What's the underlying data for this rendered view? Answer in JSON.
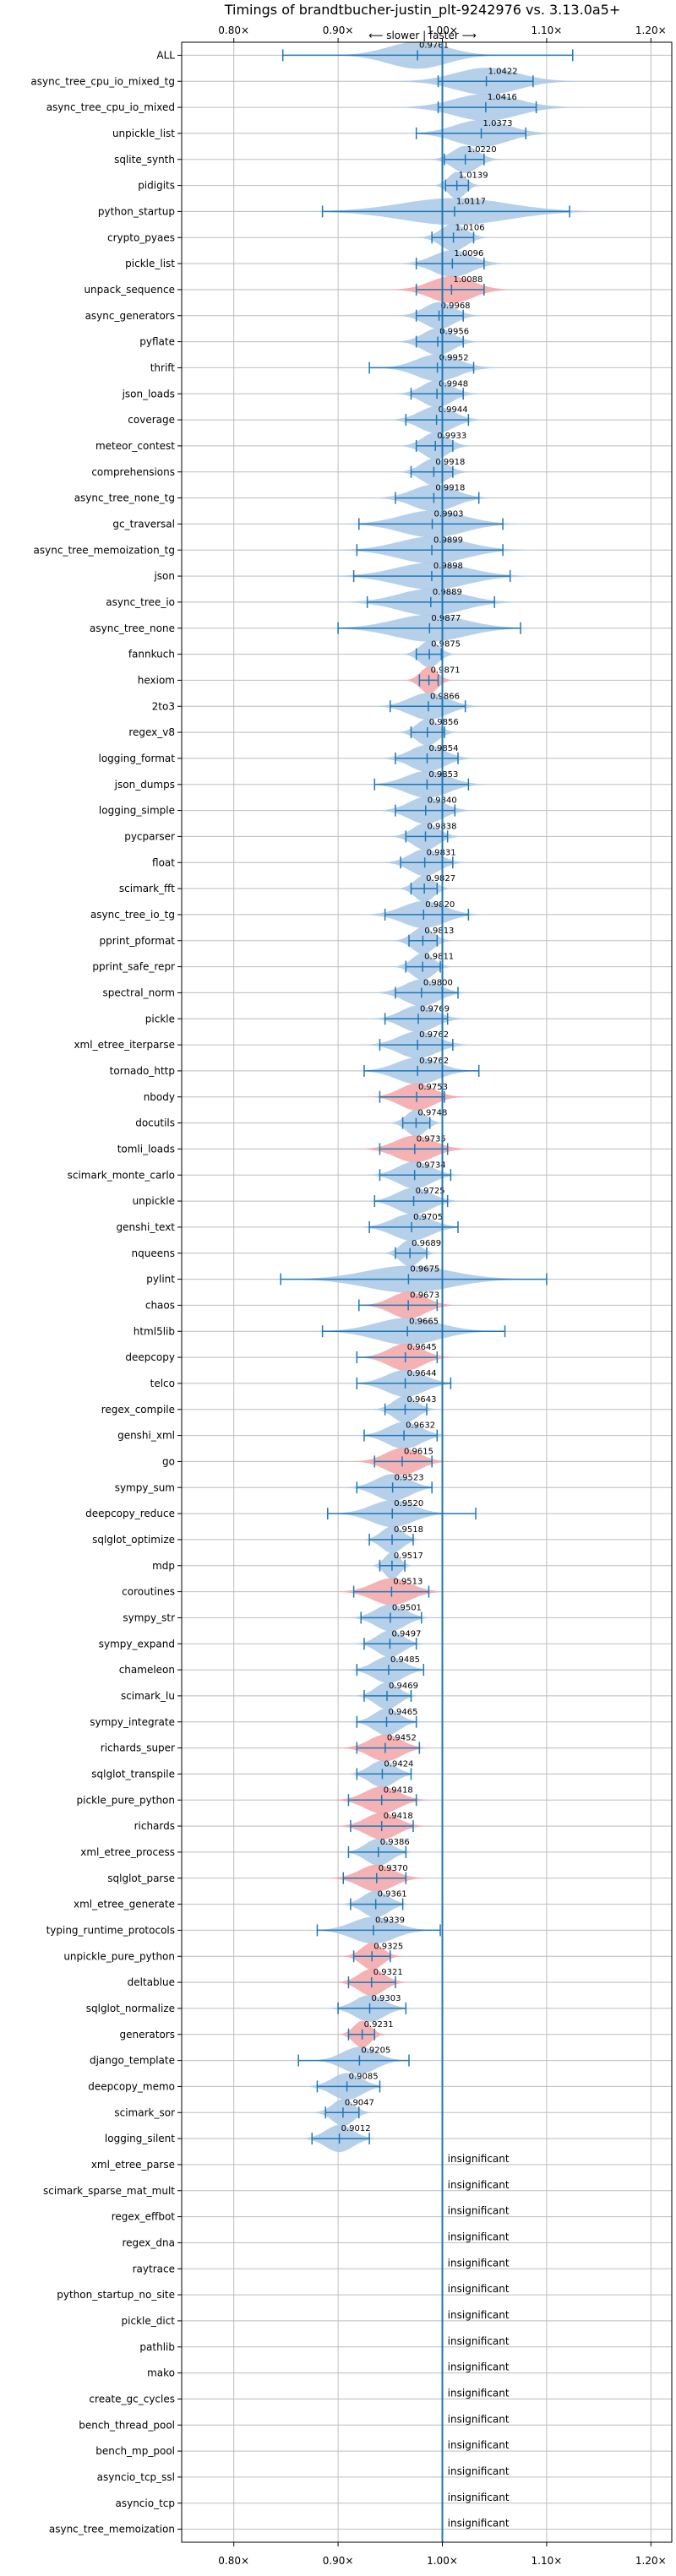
{
  "chart_data": {
    "type": "violin",
    "title": "Timings of brandtbucher-justin_plt-9242976 vs. 3.13.0a5+",
    "annotation": "⟵ slower | faster ⟶",
    "xlim": [
      0.75,
      1.22
    ],
    "xticks": [
      0.8,
      0.9,
      1.0,
      1.1,
      1.2
    ],
    "xtick_labels": [
      "0.80×",
      "0.90×",
      "1.00×",
      "1.10×",
      "1.20×"
    ],
    "reference_line": 1.0,
    "grid": true,
    "colors": {
      "faster": "#aac8e6",
      "slower": "#f2a5a8",
      "line": "#1f77b4"
    },
    "insignificant_label": "insignificant",
    "benchmarks": [
      {
        "name": "ALL",
        "mean": 0.9761,
        "min": 0.847,
        "max": 1.125,
        "color": "blue",
        "spread": 0.028
      },
      {
        "name": "async_tree_cpu_io_mixed_tg",
        "mean": 1.0422,
        "min": 0.996,
        "max": 1.087,
        "color": "blue",
        "spread": 0.03
      },
      {
        "name": "async_tree_cpu_io_mixed",
        "mean": 1.0416,
        "min": 0.996,
        "max": 1.09,
        "color": "blue",
        "spread": 0.03
      },
      {
        "name": "unpickle_list",
        "mean": 1.0373,
        "min": 0.975,
        "max": 1.08,
        "color": "blue",
        "spread": 0.025
      },
      {
        "name": "sqlite_synth",
        "mean": 1.022,
        "min": 1.002,
        "max": 1.04,
        "color": "blue",
        "spread": 0.012
      },
      {
        "name": "pidigits",
        "mean": 1.0139,
        "min": 1.003,
        "max": 1.025,
        "color": "blue",
        "spread": 0.008
      },
      {
        "name": "python_startup",
        "mean": 1.0117,
        "min": 0.885,
        "max": 1.122,
        "color": "blue",
        "spread": 0.05
      },
      {
        "name": "crypto_pyaes",
        "mean": 1.0106,
        "min": 0.99,
        "max": 1.03,
        "color": "blue",
        "spread": 0.012
      },
      {
        "name": "pickle_list",
        "mean": 1.0096,
        "min": 0.975,
        "max": 1.04,
        "color": "blue",
        "spread": 0.018
      },
      {
        "name": "unpack_sequence",
        "mean": 1.0088,
        "min": 0.975,
        "max": 1.04,
        "color": "red",
        "spread": 0.02
      },
      {
        "name": "async_generators",
        "mean": 0.9968,
        "min": 0.975,
        "max": 1.02,
        "color": "blue",
        "spread": 0.014
      },
      {
        "name": "pyflate",
        "mean": 0.9956,
        "min": 0.975,
        "max": 1.02,
        "color": "blue",
        "spread": 0.014
      },
      {
        "name": "thrift",
        "mean": 0.9952,
        "min": 0.93,
        "max": 1.03,
        "color": "blue",
        "spread": 0.02
      },
      {
        "name": "json_loads",
        "mean": 0.9948,
        "min": 0.97,
        "max": 1.02,
        "color": "blue",
        "spread": 0.014
      },
      {
        "name": "coverage",
        "mean": 0.9944,
        "min": 0.965,
        "max": 1.025,
        "color": "blue",
        "spread": 0.016
      },
      {
        "name": "meteor_contest",
        "mean": 0.9933,
        "min": 0.975,
        "max": 1.01,
        "color": "blue",
        "spread": 0.012
      },
      {
        "name": "comprehensions",
        "mean": 0.9918,
        "min": 0.97,
        "max": 1.01,
        "color": "blue",
        "spread": 0.012
      },
      {
        "name": "async_tree_none_tg",
        "mean": 0.9918,
        "min": 0.955,
        "max": 1.035,
        "color": "blue",
        "spread": 0.02
      },
      {
        "name": "gc_traversal",
        "mean": 0.9903,
        "min": 0.92,
        "max": 1.058,
        "color": "blue",
        "spread": 0.03
      },
      {
        "name": "async_tree_memoization_tg",
        "mean": 0.9899,
        "min": 0.918,
        "max": 1.058,
        "color": "blue",
        "spread": 0.032
      },
      {
        "name": "json",
        "mean": 0.9898,
        "min": 0.915,
        "max": 1.065,
        "color": "blue",
        "spread": 0.034
      },
      {
        "name": "async_tree_io",
        "mean": 0.9889,
        "min": 0.928,
        "max": 1.05,
        "color": "blue",
        "spread": 0.03
      },
      {
        "name": "async_tree_none",
        "mean": 0.9877,
        "min": 0.9,
        "max": 1.075,
        "color": "blue",
        "spread": 0.034
      },
      {
        "name": "fannkuch",
        "mean": 0.9875,
        "min": 0.975,
        "max": 0.999,
        "color": "blue",
        "spread": 0.009
      },
      {
        "name": "hexiom",
        "mean": 0.9871,
        "min": 0.978,
        "max": 0.996,
        "color": "red",
        "spread": 0.008
      },
      {
        "name": "2to3",
        "mean": 0.9866,
        "min": 0.95,
        "max": 1.022,
        "color": "blue",
        "spread": 0.018
      },
      {
        "name": "regex_v8",
        "mean": 0.9856,
        "min": 0.97,
        "max": 1.002,
        "color": "blue",
        "spread": 0.01
      },
      {
        "name": "logging_format",
        "mean": 0.9854,
        "min": 0.955,
        "max": 1.015,
        "color": "blue",
        "spread": 0.016
      },
      {
        "name": "json_dumps",
        "mean": 0.9853,
        "min": 0.935,
        "max": 1.025,
        "color": "blue",
        "spread": 0.02
      },
      {
        "name": "logging_simple",
        "mean": 0.984,
        "min": 0.955,
        "max": 1.012,
        "color": "blue",
        "spread": 0.016
      },
      {
        "name": "pycparser",
        "mean": 0.9838,
        "min": 0.965,
        "max": 1.005,
        "color": "blue",
        "spread": 0.012
      },
      {
        "name": "float",
        "mean": 0.9831,
        "min": 0.96,
        "max": 1.01,
        "color": "blue",
        "spread": 0.014
      },
      {
        "name": "scimark_fft",
        "mean": 0.9827,
        "min": 0.97,
        "max": 0.995,
        "color": "blue",
        "spread": 0.009
      },
      {
        "name": "async_tree_io_tg",
        "mean": 0.982,
        "min": 0.945,
        "max": 1.025,
        "color": "blue",
        "spread": 0.02
      },
      {
        "name": "pprint_pformat",
        "mean": 0.9813,
        "min": 0.968,
        "max": 0.995,
        "color": "blue",
        "spread": 0.01
      },
      {
        "name": "pprint_safe_repr",
        "mean": 0.9811,
        "min": 0.965,
        "max": 0.998,
        "color": "blue",
        "spread": 0.01
      },
      {
        "name": "spectral_norm",
        "mean": 0.98,
        "min": 0.955,
        "max": 1.015,
        "color": "blue",
        "spread": 0.016
      },
      {
        "name": "pickle",
        "mean": 0.9769,
        "min": 0.945,
        "max": 1.005,
        "color": "blue",
        "spread": 0.016
      },
      {
        "name": "xml_etree_iterparse",
        "mean": 0.9762,
        "min": 0.94,
        "max": 1.01,
        "color": "blue",
        "spread": 0.018
      },
      {
        "name": "tornado_http",
        "mean": 0.9762,
        "min": 0.925,
        "max": 1.035,
        "color": "blue",
        "spread": 0.02
      },
      {
        "name": "nbody",
        "mean": 0.9753,
        "min": 0.94,
        "max": 1.002,
        "color": "red",
        "spread": 0.016
      },
      {
        "name": "docutils",
        "mean": 0.9748,
        "min": 0.962,
        "max": 0.988,
        "color": "blue",
        "spread": 0.009
      },
      {
        "name": "tomli_loads",
        "mean": 0.9735,
        "min": 0.94,
        "max": 1.005,
        "color": "red",
        "spread": 0.018
      },
      {
        "name": "scimark_monte_carlo",
        "mean": 0.9734,
        "min": 0.94,
        "max": 1.008,
        "color": "blue",
        "spread": 0.016
      },
      {
        "name": "unpickle",
        "mean": 0.9725,
        "min": 0.935,
        "max": 1.005,
        "color": "blue",
        "spread": 0.016
      },
      {
        "name": "genshi_text",
        "mean": 0.9705,
        "min": 0.93,
        "max": 1.015,
        "color": "blue",
        "spread": 0.018
      },
      {
        "name": "nqueens",
        "mean": 0.9689,
        "min": 0.955,
        "max": 0.985,
        "color": "blue",
        "spread": 0.009
      },
      {
        "name": "pylint",
        "mean": 0.9675,
        "min": 0.845,
        "max": 1.1,
        "color": "blue",
        "spread": 0.04
      },
      {
        "name": "chaos",
        "mean": 0.9673,
        "min": 0.92,
        "max": 0.995,
        "color": "red",
        "spread": 0.016
      },
      {
        "name": "html5lib",
        "mean": 0.9665,
        "min": 0.885,
        "max": 1.06,
        "color": "blue",
        "spread": 0.03
      },
      {
        "name": "deepcopy",
        "mean": 0.9645,
        "min": 0.918,
        "max": 0.995,
        "color": "red",
        "spread": 0.016
      },
      {
        "name": "telco",
        "mean": 0.9644,
        "min": 0.918,
        "max": 1.008,
        "color": "blue",
        "spread": 0.018
      },
      {
        "name": "regex_compile",
        "mean": 0.9643,
        "min": 0.945,
        "max": 0.985,
        "color": "blue",
        "spread": 0.011
      },
      {
        "name": "genshi_xml",
        "mean": 0.9632,
        "min": 0.925,
        "max": 0.995,
        "color": "blue",
        "spread": 0.016
      },
      {
        "name": "go",
        "mean": 0.9615,
        "min": 0.935,
        "max": 0.99,
        "color": "red",
        "spread": 0.016
      },
      {
        "name": "sympy_sum",
        "mean": 0.9523,
        "min": 0.918,
        "max": 0.99,
        "color": "blue",
        "spread": 0.016
      },
      {
        "name": "deepcopy_reduce",
        "mean": 0.952,
        "min": 0.89,
        "max": 1.032,
        "color": "blue",
        "spread": 0.02
      },
      {
        "name": "sqlglot_optimize",
        "mean": 0.9518,
        "min": 0.93,
        "max": 0.972,
        "color": "blue",
        "spread": 0.01
      },
      {
        "name": "mdp",
        "mean": 0.9517,
        "min": 0.94,
        "max": 0.964,
        "color": "blue",
        "spread": 0.007
      },
      {
        "name": "coroutines",
        "mean": 0.9513,
        "min": 0.915,
        "max": 0.987,
        "color": "red",
        "spread": 0.018
      },
      {
        "name": "sympy_str",
        "mean": 0.9501,
        "min": 0.922,
        "max": 0.98,
        "color": "blue",
        "spread": 0.014
      },
      {
        "name": "sympy_expand",
        "mean": 0.9497,
        "min": 0.925,
        "max": 0.975,
        "color": "blue",
        "spread": 0.012
      },
      {
        "name": "chameleon",
        "mean": 0.9485,
        "min": 0.918,
        "max": 0.982,
        "color": "blue",
        "spread": 0.014
      },
      {
        "name": "scimark_lu",
        "mean": 0.9469,
        "min": 0.925,
        "max": 0.97,
        "color": "blue",
        "spread": 0.011
      },
      {
        "name": "sympy_integrate",
        "mean": 0.9465,
        "min": 0.918,
        "max": 0.975,
        "color": "blue",
        "spread": 0.012
      },
      {
        "name": "richards_super",
        "mean": 0.9452,
        "min": 0.918,
        "max": 0.978,
        "color": "red",
        "spread": 0.015
      },
      {
        "name": "sqlglot_transpile",
        "mean": 0.9424,
        "min": 0.918,
        "max": 0.97,
        "color": "blue",
        "spread": 0.012
      },
      {
        "name": "pickle_pure_python",
        "mean": 0.9418,
        "min": 0.91,
        "max": 0.975,
        "color": "red",
        "spread": 0.016
      },
      {
        "name": "richards",
        "mean": 0.9418,
        "min": 0.912,
        "max": 0.972,
        "color": "red",
        "spread": 0.015
      },
      {
        "name": "xml_etree_process",
        "mean": 0.9386,
        "min": 0.91,
        "max": 0.965,
        "color": "blue",
        "spread": 0.012
      },
      {
        "name": "sqlglot_parse",
        "mean": 0.937,
        "min": 0.905,
        "max": 0.965,
        "color": "red",
        "spread": 0.016
      },
      {
        "name": "xml_etree_generate",
        "mean": 0.9361,
        "min": 0.912,
        "max": 0.962,
        "color": "blue",
        "spread": 0.012
      },
      {
        "name": "typing_runtime_protocols",
        "mean": 0.9339,
        "min": 0.88,
        "max": 0.998,
        "color": "blue",
        "spread": 0.02
      },
      {
        "name": "unpickle_pure_python",
        "mean": 0.9325,
        "min": 0.915,
        "max": 0.95,
        "color": "red",
        "spread": 0.01
      },
      {
        "name": "deltablue",
        "mean": 0.9321,
        "min": 0.91,
        "max": 0.955,
        "color": "red",
        "spread": 0.012
      },
      {
        "name": "sqlglot_normalize",
        "mean": 0.9303,
        "min": 0.9,
        "max": 0.965,
        "color": "blue",
        "spread": 0.014
      },
      {
        "name": "generators",
        "mean": 0.9231,
        "min": 0.91,
        "max": 0.935,
        "color": "red",
        "spread": 0.008
      },
      {
        "name": "django_template",
        "mean": 0.9205,
        "min": 0.862,
        "max": 0.968,
        "color": "blue",
        "spread": 0.016
      },
      {
        "name": "deepcopy_memo",
        "mean": 0.9085,
        "min": 0.88,
        "max": 0.94,
        "color": "blue",
        "spread": 0.014
      },
      {
        "name": "scimark_sor",
        "mean": 0.9047,
        "min": 0.888,
        "max": 0.92,
        "color": "blue",
        "spread": 0.01
      },
      {
        "name": "logging_silent",
        "mean": 0.9012,
        "min": 0.875,
        "max": 0.93,
        "color": "blue",
        "spread": 0.013
      },
      {
        "name": "xml_etree_parse",
        "insignificant": true
      },
      {
        "name": "scimark_sparse_mat_mult",
        "insignificant": true
      },
      {
        "name": "regex_effbot",
        "insignificant": true
      },
      {
        "name": "regex_dna",
        "insignificant": true
      },
      {
        "name": "raytrace",
        "insignificant": true
      },
      {
        "name": "python_startup_no_site",
        "insignificant": true
      },
      {
        "name": "pickle_dict",
        "insignificant": true
      },
      {
        "name": "pathlib",
        "insignificant": true
      },
      {
        "name": "mako",
        "insignificant": true
      },
      {
        "name": "create_gc_cycles",
        "insignificant": true
      },
      {
        "name": "bench_thread_pool",
        "insignificant": true
      },
      {
        "name": "bench_mp_pool",
        "insignificant": true
      },
      {
        "name": "asyncio_tcp_ssl",
        "insignificant": true
      },
      {
        "name": "asyncio_tcp",
        "insignificant": true
      },
      {
        "name": "async_tree_memoization",
        "insignificant": true
      }
    ]
  }
}
